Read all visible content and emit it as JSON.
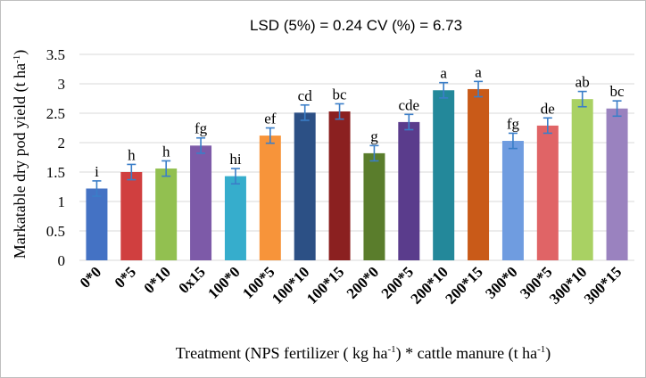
{
  "chart_data": {
    "type": "bar",
    "title": "LSD (5%) = 0.24  CV (%) = 6.73",
    "ylabel_main": "Markatable dry pod yield  (t ha",
    "ylabel_sup": "-1",
    "ylabel_end": ")",
    "xlabel_parts": {
      "p1": "Treatment (NPS fertilizer ( kg ha",
      "s1": "-1",
      "p2": ") * cattle manure (t ha",
      "s2": "-1",
      "p3": ")"
    },
    "ylim": [
      0,
      3.5
    ],
    "yticks": [
      "0",
      "0.5",
      "1",
      "1.5",
      "2",
      "2.5",
      "3",
      "3.5"
    ],
    "grid": true,
    "categories": [
      "0*0",
      "0*5",
      "0*10",
      "0x15",
      "100*0",
      "100*5",
      "100*10",
      "100*15",
      "200*0",
      "200*5",
      "200*10",
      "200*15",
      "300*0",
      "300*5",
      "300*10",
      "300*15"
    ],
    "values": [
      1.22,
      1.5,
      1.56,
      1.95,
      1.43,
      2.12,
      2.51,
      2.53,
      1.82,
      2.35,
      2.89,
      2.91,
      2.03,
      2.29,
      2.74,
      2.58
    ],
    "error": [
      0.13,
      0.13,
      0.13,
      0.13,
      0.13,
      0.13,
      0.13,
      0.13,
      0.13,
      0.13,
      0.13,
      0.13,
      0.13,
      0.13,
      0.13,
      0.13
    ],
    "letters": [
      "i",
      "h",
      "h",
      "fg",
      "hi",
      "ef",
      "cd",
      "bc",
      "g",
      "cde",
      "a",
      "a",
      "fg",
      "de",
      "ab",
      "bc"
    ],
    "colors": [
      "#4472c4",
      "#d03f3f",
      "#92c050",
      "#7d5aa8",
      "#36adcc",
      "#f7943a",
      "#2c5085",
      "#8b2020",
      "#5a7d2c",
      "#5a3c8c",
      "#23889a",
      "#c95a18",
      "#6f9ce0",
      "#e06466",
      "#a9d163",
      "#9a82bf"
    ],
    "error_color": "#3a7ec8"
  }
}
